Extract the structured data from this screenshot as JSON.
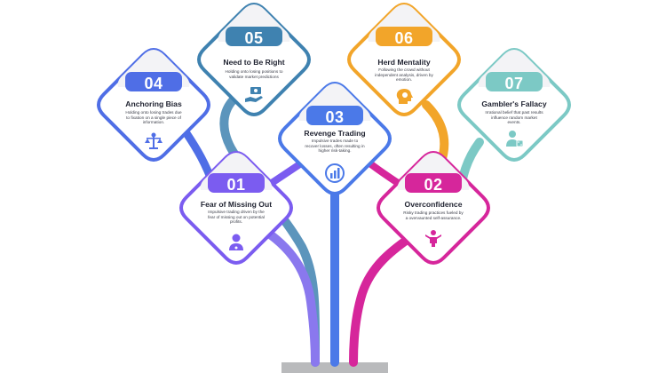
{
  "colors": {
    "01": "#7b5cf0",
    "02": "#d6269b",
    "03": "#4b79e8",
    "04": "#4f6ee6",
    "05": "#3f82b0",
    "06": "#f2a52a",
    "07": "#7cc9c5",
    "base": "#b9babc"
  },
  "items": [
    {
      "number": "01",
      "title": "Fear of Missing Out",
      "desc": [
        "Impulsive trading driven by the",
        "fear of missing out on potential",
        "profits."
      ],
      "icon": "person-icon"
    },
    {
      "number": "02",
      "title": "Overconfidence",
      "desc": [
        "Risky trading practices fueled by",
        "a overvaunted self-assurance."
      ],
      "icon": "figure-icon"
    },
    {
      "number": "03",
      "title": "Revenge Trading",
      "desc": [
        "Impulsive trades made to",
        "recover losses, often resulting in",
        "higher risk-taking."
      ],
      "icon": "chart-icon"
    },
    {
      "number": "04",
      "title": "Anchoring Bias",
      "desc": [
        "Holding onto losing trades due",
        "to fixation on a single piece of",
        "information."
      ],
      "icon": "scales-icon"
    },
    {
      "number": "05",
      "title": "Need to Be Right",
      "desc": [
        "Holding onto losing positions to",
        "validate market predictions"
      ],
      "icon": "hand-money-icon"
    },
    {
      "number": "06",
      "title": "Herd Mentality",
      "desc": [
        "Following the crowd without",
        "independent analysis, driven by",
        "emotion."
      ],
      "icon": "head-icon"
    },
    {
      "number": "07",
      "title": "Gambler's Fallacy",
      "desc": [
        "Irrational belief that past results",
        "influence random market",
        "events."
      ],
      "icon": "gambler-icon"
    }
  ]
}
